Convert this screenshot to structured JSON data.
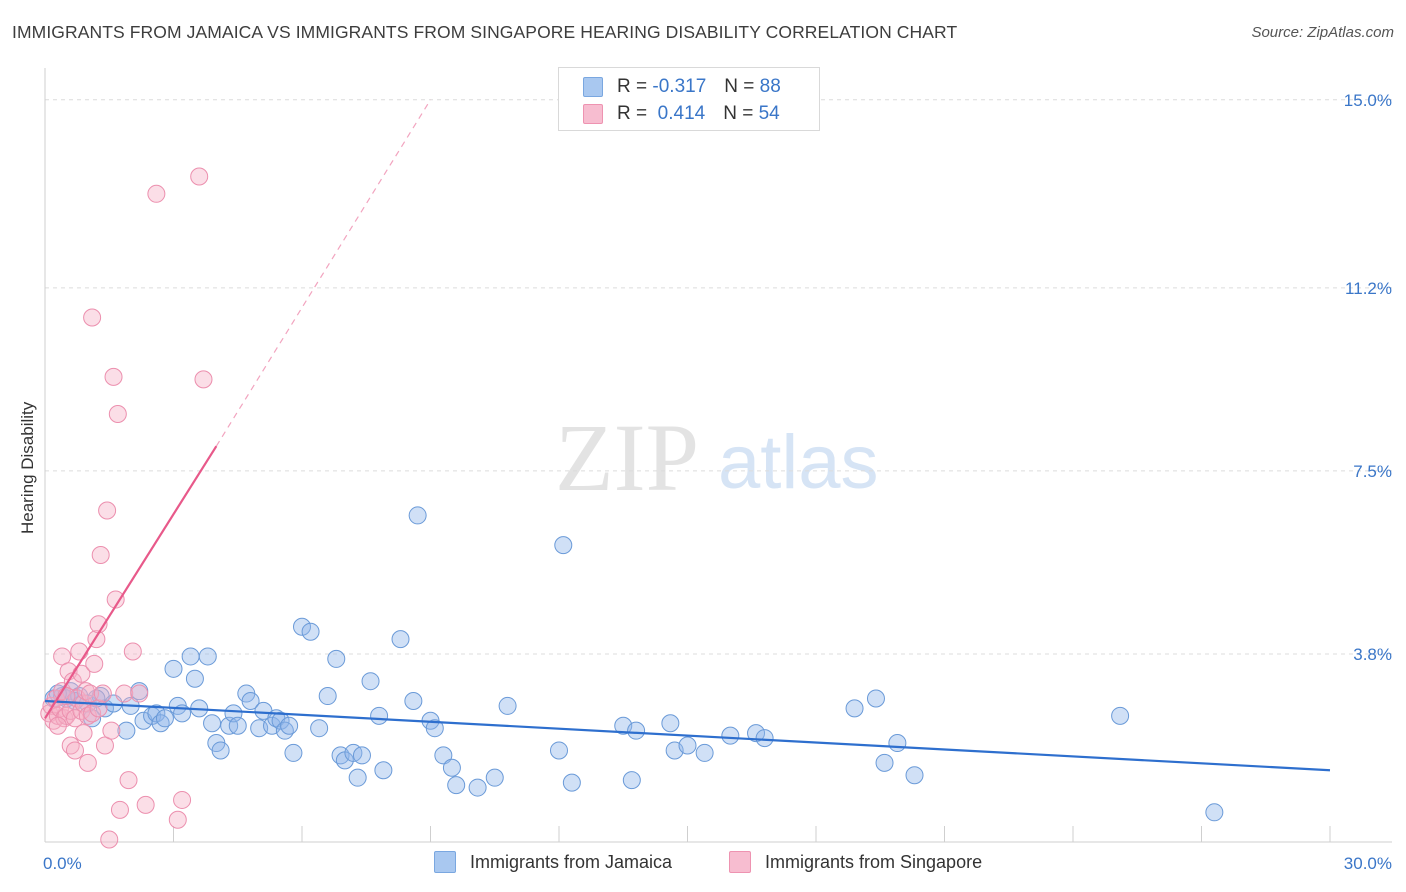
{
  "header": {
    "title": "IMMIGRANTS FROM JAMAICA VS IMMIGRANTS FROM SINGAPORE HEARING DISABILITY CORRELATION CHART",
    "source": "Source: ZipAtlas.com"
  },
  "watermark": {
    "zip": "ZIP",
    "atlas": "atlas"
  },
  "legend_top": {
    "r_label": "R =",
    "n_label": "N =",
    "rows": [
      {
        "r": "-0.317",
        "n": "88",
        "color": "#a9c8f0",
        "border": "#7aa7e0"
      },
      {
        "r": "0.414",
        "n": "54",
        "color": "#f7bdd0",
        "border": "#ee93b1"
      }
    ]
  },
  "chart_data": {
    "type": "scatter",
    "title": "IMMIGRANTS FROM JAMAICA VS IMMIGRANTS FROM SINGAPORE HEARING DISABILITY CORRELATION CHART",
    "xlabel": "",
    "ylabel": "Hearing Disability",
    "xlim": [
      0,
      30
    ],
    "ylim": [
      0,
      15.4
    ],
    "y_ticks": [
      3.8,
      7.5,
      11.2,
      15.0
    ],
    "y_tick_labels": [
      "3.8%",
      "7.5%",
      "11.2%",
      "15.0%"
    ],
    "x_tick_labels": [
      "0.0%",
      "30.0%"
    ],
    "grid": "horizontal dashed",
    "series": [
      {
        "name": "Immigrants from Jamaica",
        "color": "#8fb5ea",
        "stroke": "#6a9ad8",
        "trend": {
          "x0": 0.0,
          "y0": 2.85,
          "x1": 30.0,
          "y1": 1.45,
          "color": "#2e6fce",
          "dashed_extension": false
        },
        "points": [
          [
            0.2,
            2.9
          ],
          [
            0.4,
            2.95
          ],
          [
            0.5,
            2.9
          ],
          [
            0.6,
            3.05
          ],
          [
            0.7,
            2.85
          ],
          [
            0.8,
            2.95
          ],
          [
            1.0,
            2.8
          ],
          [
            1.1,
            2.5
          ],
          [
            1.3,
            2.95
          ],
          [
            1.4,
            2.7
          ],
          [
            1.6,
            2.8
          ],
          [
            1.9,
            2.25
          ],
          [
            2.0,
            2.75
          ],
          [
            2.3,
            2.45
          ],
          [
            2.2,
            3.05
          ],
          [
            2.5,
            2.55
          ],
          [
            2.6,
            2.6
          ],
          [
            2.7,
            2.4
          ],
          [
            2.8,
            2.5
          ],
          [
            3.0,
            3.5
          ],
          [
            3.1,
            2.75
          ],
          [
            3.2,
            2.6
          ],
          [
            3.4,
            3.75
          ],
          [
            3.5,
            3.3
          ],
          [
            3.6,
            2.7
          ],
          [
            3.8,
            3.75
          ],
          [
            3.9,
            2.4
          ],
          [
            4.0,
            2.0
          ],
          [
            4.1,
            1.85
          ],
          [
            4.3,
            2.35
          ],
          [
            4.4,
            2.6
          ],
          [
            4.5,
            2.35
          ],
          [
            4.7,
            3.0
          ],
          [
            4.8,
            2.85
          ],
          [
            5.0,
            2.3
          ],
          [
            5.1,
            2.65
          ],
          [
            5.3,
            2.35
          ],
          [
            5.4,
            2.5
          ],
          [
            5.5,
            2.45
          ],
          [
            5.6,
            2.25
          ],
          [
            5.7,
            2.35
          ],
          [
            5.8,
            1.8
          ],
          [
            6.0,
            4.35
          ],
          [
            6.2,
            4.25
          ],
          [
            6.4,
            2.3
          ],
          [
            6.6,
            2.95
          ],
          [
            6.8,
            3.7
          ],
          [
            6.9,
            1.75
          ],
          [
            7.0,
            1.65
          ],
          [
            7.2,
            1.8
          ],
          [
            7.3,
            1.3
          ],
          [
            7.4,
            1.75
          ],
          [
            7.6,
            3.25
          ],
          [
            7.8,
            2.55
          ],
          [
            7.9,
            1.45
          ],
          [
            8.3,
            4.1
          ],
          [
            8.6,
            2.85
          ],
          [
            8.7,
            6.6
          ],
          [
            9.0,
            2.45
          ],
          [
            9.1,
            2.3
          ],
          [
            9.3,
            1.75
          ],
          [
            9.5,
            1.5
          ],
          [
            9.6,
            1.15
          ],
          [
            10.1,
            1.1
          ],
          [
            10.5,
            1.3
          ],
          [
            10.8,
            2.75
          ],
          [
            12.0,
            1.85
          ],
          [
            12.1,
            6.0
          ],
          [
            12.3,
            1.2
          ],
          [
            13.5,
            2.35
          ],
          [
            13.7,
            1.25
          ],
          [
            13.8,
            2.25
          ],
          [
            14.6,
            2.4
          ],
          [
            14.7,
            1.85
          ],
          [
            15.0,
            1.95
          ],
          [
            15.4,
            1.8
          ],
          [
            16.0,
            2.15
          ],
          [
            16.6,
            2.2
          ],
          [
            16.8,
            2.1
          ],
          [
            18.9,
            2.7
          ],
          [
            19.4,
            2.9
          ],
          [
            19.6,
            1.6
          ],
          [
            19.9,
            2.0
          ],
          [
            20.3,
            1.35
          ],
          [
            25.1,
            2.55
          ],
          [
            27.3,
            0.6
          ],
          [
            0.3,
            3.0
          ],
          [
            1.2,
            2.9
          ]
        ]
      },
      {
        "name": "Immigrants from Singapore",
        "color": "#f5b1c6",
        "stroke": "#ec8fae",
        "trend": {
          "x0": 0.0,
          "y0": 2.5,
          "x1": 4.0,
          "y1": 8.0,
          "color": "#e8598a",
          "dashed_extension": true,
          "dash_to": [
            9.0,
            15.0
          ]
        },
        "points": [
          [
            0.1,
            2.6
          ],
          [
            0.15,
            2.75
          ],
          [
            0.2,
            2.45
          ],
          [
            0.25,
            2.9
          ],
          [
            0.3,
            2.55
          ],
          [
            0.35,
            2.7
          ],
          [
            0.4,
            3.05
          ],
          [
            0.4,
            3.75
          ],
          [
            0.45,
            2.5
          ],
          [
            0.5,
            2.55
          ],
          [
            0.55,
            3.45
          ],
          [
            0.6,
            2.65
          ],
          [
            0.6,
            1.95
          ],
          [
            0.65,
            3.25
          ],
          [
            0.7,
            2.5
          ],
          [
            0.7,
            1.85
          ],
          [
            0.75,
            2.9
          ],
          [
            0.8,
            3.85
          ],
          [
            0.85,
            2.65
          ],
          [
            0.85,
            3.4
          ],
          [
            0.9,
            2.8
          ],
          [
            0.9,
            2.2
          ],
          [
            0.95,
            3.05
          ],
          [
            1.0,
            2.55
          ],
          [
            1.0,
            1.6
          ],
          [
            1.05,
            3.0
          ],
          [
            1.1,
            2.6
          ],
          [
            1.1,
            10.6
          ],
          [
            1.15,
            3.6
          ],
          [
            1.2,
            4.1
          ],
          [
            1.25,
            2.7
          ],
          [
            1.25,
            4.4
          ],
          [
            1.3,
            5.8
          ],
          [
            1.35,
            3.0
          ],
          [
            1.4,
            1.95
          ],
          [
            1.45,
            6.7
          ],
          [
            1.5,
            0.05
          ],
          [
            1.55,
            2.25
          ],
          [
            1.6,
            9.4
          ],
          [
            1.65,
            4.9
          ],
          [
            1.7,
            8.65
          ],
          [
            1.75,
            0.65
          ],
          [
            1.85,
            3.0
          ],
          [
            1.95,
            1.25
          ],
          [
            2.05,
            3.85
          ],
          [
            2.2,
            3.0
          ],
          [
            2.35,
            0.75
          ],
          [
            2.6,
            13.1
          ],
          [
            3.1,
            0.45
          ],
          [
            3.2,
            0.85
          ],
          [
            3.6,
            13.45
          ],
          [
            3.7,
            9.35
          ],
          [
            0.5,
            2.95
          ],
          [
            0.3,
            2.35
          ]
        ]
      }
    ]
  },
  "bottom_legend": [
    {
      "label": "Immigrants from Jamaica",
      "color": "#a9c8f0",
      "border": "#7aa7e0"
    },
    {
      "label": "Immigrants from Singapore",
      "color": "#f7bdd0",
      "border": "#ee93b1"
    }
  ]
}
